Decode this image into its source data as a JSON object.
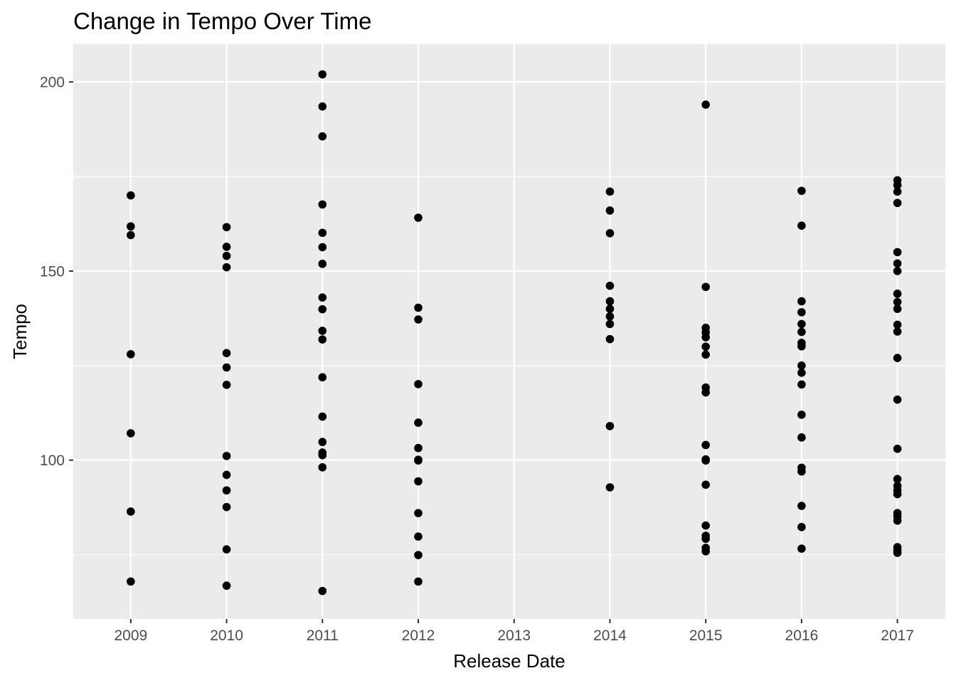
{
  "chart_data": {
    "type": "scatter",
    "title": "Change in Tempo Over Time",
    "xlabel": "Release Date",
    "ylabel": "Tempo",
    "x_ticks": [
      "2009",
      "2010",
      "2011",
      "2012",
      "2013",
      "2014",
      "2015",
      "2016",
      "2017"
    ],
    "y_ticks": [
      100,
      150,
      200
    ],
    "xlim": [
      2008.4,
      2017.5
    ],
    "ylim": [
      58,
      210
    ],
    "grid": true,
    "legend": "none",
    "colors": {
      "panel": "#ebebeb",
      "grid": "#ffffff",
      "point": "#000000",
      "tick_text": "#4d4d4d"
    },
    "points": [
      {
        "x": 2009,
        "y": 170.0
      },
      {
        "x": 2009,
        "y": 161.8
      },
      {
        "x": 2009,
        "y": 159.5
      },
      {
        "x": 2009,
        "y": 128.0
      },
      {
        "x": 2009,
        "y": 107.1
      },
      {
        "x": 2009,
        "y": 86.4
      },
      {
        "x": 2009,
        "y": 67.9
      },
      {
        "x": 2010,
        "y": 161.6
      },
      {
        "x": 2010,
        "y": 156.4
      },
      {
        "x": 2010,
        "y": 154.0
      },
      {
        "x": 2010,
        "y": 151.0
      },
      {
        "x": 2010,
        "y": 128.3
      },
      {
        "x": 2010,
        "y": 124.5
      },
      {
        "x": 2010,
        "y": 119.9
      },
      {
        "x": 2010,
        "y": 101.1
      },
      {
        "x": 2010,
        "y": 96.1
      },
      {
        "x": 2010,
        "y": 92.0
      },
      {
        "x": 2010,
        "y": 87.6
      },
      {
        "x": 2010,
        "y": 76.4
      },
      {
        "x": 2010,
        "y": 66.8
      },
      {
        "x": 2011,
        "y": 202.0
      },
      {
        "x": 2011,
        "y": 193.5
      },
      {
        "x": 2011,
        "y": 185.6
      },
      {
        "x": 2011,
        "y": 167.6
      },
      {
        "x": 2011,
        "y": 160.1
      },
      {
        "x": 2011,
        "y": 156.3
      },
      {
        "x": 2011,
        "y": 151.9
      },
      {
        "x": 2011,
        "y": 143.0
      },
      {
        "x": 2011,
        "y": 139.9
      },
      {
        "x": 2011,
        "y": 134.2
      },
      {
        "x": 2011,
        "y": 131.9
      },
      {
        "x": 2011,
        "y": 121.9
      },
      {
        "x": 2011,
        "y": 111.5
      },
      {
        "x": 2011,
        "y": 104.8
      },
      {
        "x": 2011,
        "y": 102.0
      },
      {
        "x": 2011,
        "y": 101.3
      },
      {
        "x": 2011,
        "y": 98.1
      },
      {
        "x": 2011,
        "y": 65.4
      },
      {
        "x": 2012,
        "y": 164.1
      },
      {
        "x": 2012,
        "y": 140.3
      },
      {
        "x": 2012,
        "y": 137.2
      },
      {
        "x": 2012,
        "y": 120.1
      },
      {
        "x": 2012,
        "y": 109.9
      },
      {
        "x": 2012,
        "y": 103.2
      },
      {
        "x": 2012,
        "y": 100.1
      },
      {
        "x": 2012,
        "y": 99.9
      },
      {
        "x": 2012,
        "y": 94.4
      },
      {
        "x": 2012,
        "y": 86.0
      },
      {
        "x": 2012,
        "y": 79.8
      },
      {
        "x": 2012,
        "y": 74.9
      },
      {
        "x": 2012,
        "y": 67.9
      },
      {
        "x": 2014,
        "y": 171.0
      },
      {
        "x": 2014,
        "y": 166.0
      },
      {
        "x": 2014,
        "y": 160.0
      },
      {
        "x": 2014,
        "y": 146.1
      },
      {
        "x": 2014,
        "y": 142.0
      },
      {
        "x": 2014,
        "y": 140.0
      },
      {
        "x": 2014,
        "y": 138.0
      },
      {
        "x": 2014,
        "y": 136.0
      },
      {
        "x": 2014,
        "y": 132.0
      },
      {
        "x": 2014,
        "y": 109.0
      },
      {
        "x": 2014,
        "y": 92.8
      },
      {
        "x": 2015,
        "y": 194.0
      },
      {
        "x": 2015,
        "y": 145.8
      },
      {
        "x": 2015,
        "y": 135.0
      },
      {
        "x": 2015,
        "y": 133.8
      },
      {
        "x": 2015,
        "y": 132.5
      },
      {
        "x": 2015,
        "y": 130.0
      },
      {
        "x": 2015,
        "y": 127.9
      },
      {
        "x": 2015,
        "y": 119.2
      },
      {
        "x": 2015,
        "y": 117.9
      },
      {
        "x": 2015,
        "y": 104.0
      },
      {
        "x": 2015,
        "y": 100.2
      },
      {
        "x": 2015,
        "y": 99.9
      },
      {
        "x": 2015,
        "y": 93.5
      },
      {
        "x": 2015,
        "y": 82.7
      },
      {
        "x": 2015,
        "y": 80.0
      },
      {
        "x": 2015,
        "y": 79.2
      },
      {
        "x": 2015,
        "y": 76.8
      },
      {
        "x": 2015,
        "y": 75.9
      },
      {
        "x": 2016,
        "y": 171.2
      },
      {
        "x": 2016,
        "y": 162.0
      },
      {
        "x": 2016,
        "y": 142.0
      },
      {
        "x": 2016,
        "y": 139.1
      },
      {
        "x": 2016,
        "y": 136.0
      },
      {
        "x": 2016,
        "y": 133.9
      },
      {
        "x": 2016,
        "y": 131.0
      },
      {
        "x": 2016,
        "y": 130.1
      },
      {
        "x": 2016,
        "y": 125.0
      },
      {
        "x": 2016,
        "y": 123.1
      },
      {
        "x": 2016,
        "y": 120.0
      },
      {
        "x": 2016,
        "y": 112.0
      },
      {
        "x": 2016,
        "y": 106.0
      },
      {
        "x": 2016,
        "y": 98.0
      },
      {
        "x": 2016,
        "y": 97.0
      },
      {
        "x": 2016,
        "y": 87.9
      },
      {
        "x": 2016,
        "y": 82.3
      },
      {
        "x": 2016,
        "y": 76.6
      },
      {
        "x": 2017,
        "y": 174.0
      },
      {
        "x": 2017,
        "y": 172.7
      },
      {
        "x": 2017,
        "y": 171.0
      },
      {
        "x": 2017,
        "y": 168.0
      },
      {
        "x": 2017,
        "y": 155.0
      },
      {
        "x": 2017,
        "y": 152.0
      },
      {
        "x": 2017,
        "y": 150.0
      },
      {
        "x": 2017,
        "y": 144.0
      },
      {
        "x": 2017,
        "y": 141.8
      },
      {
        "x": 2017,
        "y": 140.0
      },
      {
        "x": 2017,
        "y": 135.8
      },
      {
        "x": 2017,
        "y": 134.0
      },
      {
        "x": 2017,
        "y": 127.0
      },
      {
        "x": 2017,
        "y": 116.0
      },
      {
        "x": 2017,
        "y": 103.0
      },
      {
        "x": 2017,
        "y": 95.0
      },
      {
        "x": 2017,
        "y": 93.2
      },
      {
        "x": 2017,
        "y": 92.0
      },
      {
        "x": 2017,
        "y": 91.0
      },
      {
        "x": 2017,
        "y": 86.0
      },
      {
        "x": 2017,
        "y": 85.1
      },
      {
        "x": 2017,
        "y": 84.0
      },
      {
        "x": 2017,
        "y": 77.0
      },
      {
        "x": 2017,
        "y": 76.2
      },
      {
        "x": 2017,
        "y": 75.5
      }
    ]
  }
}
